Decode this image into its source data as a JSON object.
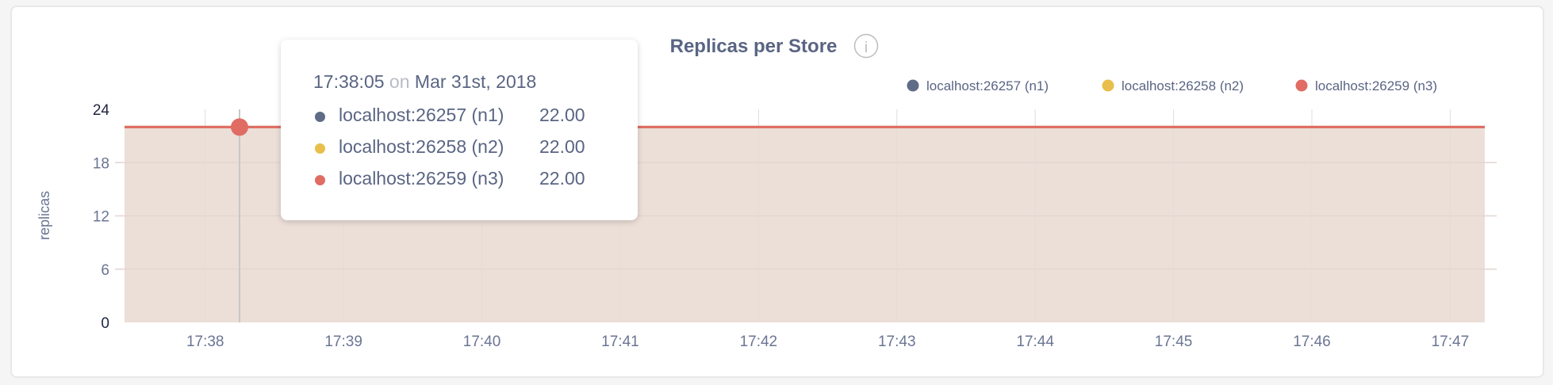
{
  "chart_data": {
    "type": "area",
    "title": "Replicas per Store",
    "ylabel": "replicas",
    "xlabel": "",
    "ylim": [
      0,
      24
    ],
    "yticks": [
      "0",
      "6",
      "12",
      "18",
      "24"
    ],
    "xlim": [
      "17:37:25",
      "17:47:15"
    ],
    "xticks": [
      "17:38",
      "17:39",
      "17:40",
      "17:41",
      "17:42",
      "17:43",
      "17:44",
      "17:45",
      "17:46",
      "17:47"
    ],
    "grid": true,
    "legend_position": "top-right",
    "series": [
      {
        "name": "localhost:26257 (n1)",
        "color": "#5f6b87",
        "x": [
          "17:37:25",
          "17:47:15"
        ],
        "values": [
          22,
          22
        ]
      },
      {
        "name": "localhost:26258 (n2)",
        "color": "#e8bf4a",
        "x": [
          "17:37:25",
          "17:47:15"
        ],
        "values": [
          22,
          22
        ]
      },
      {
        "name": "localhost:26259 (n3)",
        "color": "#e06c64",
        "x": [
          "17:37:25",
          "17:47:15"
        ],
        "values": [
          22,
          22
        ]
      }
    ],
    "tooltip": {
      "time": "17:38:05",
      "on": "on",
      "date": "Mar 31st, 2018",
      "rows": [
        {
          "label": "localhost:26257 (n1)",
          "value": "22.00"
        },
        {
          "label": "localhost:26258 (n2)",
          "value": "22.00"
        },
        {
          "label": "localhost:26259 (n3)",
          "value": "22.00"
        }
      ]
    },
    "info_icon": "info-circle-icon"
  }
}
